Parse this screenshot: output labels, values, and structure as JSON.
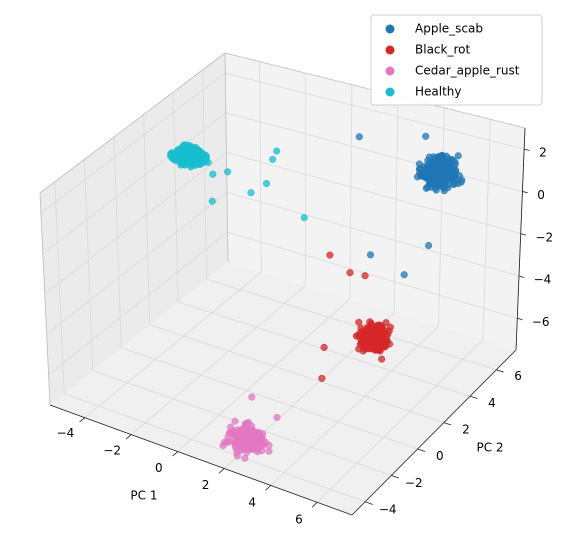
{
  "chart_data": {
    "type": "scatter",
    "projection": "3d",
    "xlabel": "PC 1",
    "ylabel": "PC 2",
    "zlabel": "",
    "xlim": [
      -5.5,
      7.5
    ],
    "ylim": [
      -5,
      7.5
    ],
    "zlim": [
      -7.5,
      3
    ],
    "xticks": [
      "−4",
      "−2",
      "0",
      "2",
      "4",
      "6"
    ],
    "xtick_values": [
      -4,
      -2,
      0,
      2,
      4,
      6
    ],
    "yticks": [
      "−4",
      "−2",
      "0",
      "2",
      "4",
      "6"
    ],
    "ytick_values": [
      -4,
      -2,
      0,
      2,
      4,
      6
    ],
    "zticks": [
      "2",
      "0",
      "−2",
      "−4",
      "−6"
    ],
    "ztick_values": [
      2,
      0,
      -2,
      -4,
      -6
    ],
    "grid": true,
    "legend_position": "top-right",
    "series": [
      {
        "name": "Apple_scab",
        "color": "#1f77b4",
        "center": [
          5.2,
          5.2,
          1.6
        ],
        "spread": [
          0.5,
          0.5,
          0.35
        ],
        "count": 260,
        "outliers": [
          [
            1.5,
            5.6,
            2.0
          ],
          [
            4.0,
            6.2,
            2.4
          ],
          [
            3.6,
            3.0,
            -1.5
          ],
          [
            4.6,
            3.8,
            -2.6
          ],
          [
            5.4,
            4.2,
            -1.2
          ]
        ]
      },
      {
        "name": "Black_rot",
        "color": "#d62728",
        "center": [
          4.5,
          1.8,
          -4.4
        ],
        "spread": [
          0.4,
          0.4,
          0.3
        ],
        "count": 240,
        "outliers": [
          [
            1.6,
            3.4,
            -2.4
          ],
          [
            2.6,
            3.2,
            -2.8
          ],
          [
            2.9,
            3.8,
            -3.2
          ],
          [
            2.8,
            1.0,
            -5.0
          ],
          [
            3.3,
            0.0,
            -5.7
          ]
        ]
      },
      {
        "name": "Cedar_apple_rust",
        "color": "#e377c2",
        "center": [
          2.2,
          -3.6,
          -6.9
        ],
        "spread": [
          0.5,
          0.45,
          0.35
        ],
        "count": 180,
        "outliers": [
          [
            1.8,
            -2.6,
            -5.6
          ],
          [
            3.0,
            -2.8,
            -6.0
          ]
        ]
      },
      {
        "name": "Healthy",
        "color": "#17becf",
        "center": [
          -4.0,
          2.7,
          1.0
        ],
        "spread": [
          0.45,
          0.35,
          0.22
        ],
        "count": 230,
        "outliers": [
          [
            -2.2,
            2.4,
            1.0
          ],
          [
            -1.0,
            3.6,
            1.3
          ],
          [
            -0.9,
            3.0,
            0.5
          ],
          [
            -1.2,
            2.4,
            0.3
          ],
          [
            -2.5,
            1.8,
            -0.2
          ],
          [
            -2.9,
            2.5,
            0.6
          ],
          [
            -1.2,
            4.2,
            1.3
          ],
          [
            0.6,
            3.2,
            -0.8
          ]
        ]
      }
    ]
  }
}
